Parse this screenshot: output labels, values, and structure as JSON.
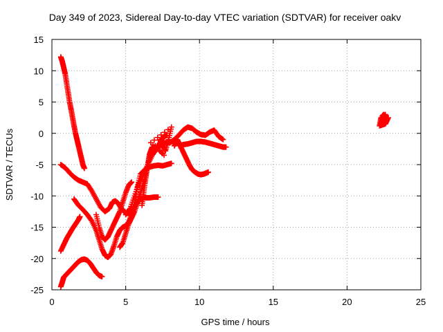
{
  "chart_data": {
    "type": "scatter",
    "title": "Day 349 of 2023, Sidereal Day-to-day VTEC variation (SDTVAR) for receiver oakv",
    "xlabel": "GPS time / hours",
    "ylabel": "SDTVAR / TECUs",
    "xlim": [
      0,
      25
    ],
    "ylim": [
      -25,
      15
    ],
    "xticks": [
      0,
      5,
      10,
      15,
      20,
      25
    ],
    "yticks": [
      -25,
      -20,
      -15,
      -10,
      -5,
      0,
      5,
      10,
      15
    ],
    "grid": true,
    "marker": "+",
    "color": "#ff0000",
    "series": [
      {
        "points": [
          [
            0.6,
            12.2
          ],
          [
            0.7,
            11.5
          ],
          [
            0.8,
            10.5
          ],
          [
            0.9,
            9.5
          ],
          [
            1.0,
            8.0
          ],
          [
            1.1,
            6.5
          ],
          [
            1.2,
            5.0
          ],
          [
            1.3,
            3.8
          ],
          [
            1.4,
            2.5
          ],
          [
            1.5,
            1.2
          ],
          [
            1.6,
            0.0
          ],
          [
            1.7,
            -1.0
          ],
          [
            1.8,
            -2.0
          ],
          [
            1.9,
            -3.0
          ],
          [
            2.0,
            -4.0
          ],
          [
            2.1,
            -5.0
          ],
          [
            2.2,
            -5.6
          ]
        ]
      },
      {
        "points": [
          [
            0.6,
            -5.0
          ],
          [
            0.9,
            -5.5
          ],
          [
            1.2,
            -6.3
          ],
          [
            1.5,
            -7.0
          ],
          [
            1.8,
            -7.5
          ],
          [
            2.1,
            -7.8
          ],
          [
            2.4,
            -8.1
          ],
          [
            2.7,
            -9.2
          ],
          [
            3.0,
            -10.5
          ],
          [
            3.3,
            -11.8
          ],
          [
            3.6,
            -12.5
          ],
          [
            3.9,
            -12.0
          ],
          [
            4.1,
            -11.0
          ],
          [
            4.3,
            -10.8
          ],
          [
            4.5,
            -11.2
          ],
          [
            4.7,
            -12.0
          ],
          [
            4.9,
            -12.5
          ],
          [
            5.1,
            -12.8
          ],
          [
            5.3,
            -12.6
          ],
          [
            5.5,
            -12.0
          ],
          [
            5.8,
            -11.0
          ],
          [
            6.0,
            -10.5
          ],
          [
            6.3,
            -10.3
          ],
          [
            6.6,
            -10.3
          ],
          [
            6.9,
            -10.2
          ],
          [
            7.2,
            -10.2
          ]
        ]
      },
      {
        "points": [
          [
            1.5,
            -10.5
          ],
          [
            1.8,
            -11.5
          ],
          [
            2.1,
            -12.2
          ],
          [
            2.4,
            -13.0
          ],
          [
            2.7,
            -14.0
          ],
          [
            3.0,
            -15.5
          ],
          [
            3.2,
            -17.0
          ],
          [
            3.4,
            -18.5
          ],
          [
            3.6,
            -19.5
          ],
          [
            3.8,
            -19.8
          ],
          [
            4.0,
            -19.3
          ],
          [
            4.2,
            -18.0
          ],
          [
            4.4,
            -16.5
          ],
          [
            4.6,
            -15.5
          ],
          [
            4.8,
            -15.0
          ],
          [
            5.0,
            -14.8
          ],
          [
            5.2,
            -14.2
          ],
          [
            5.4,
            -13.0
          ],
          [
            5.6,
            -11.0
          ],
          [
            5.8,
            -8.5
          ],
          [
            6.0,
            -6.5
          ],
          [
            6.3,
            -5.8
          ],
          [
            6.6,
            -5.4
          ],
          [
            6.9,
            -5.2
          ],
          [
            7.2,
            -5.1
          ],
          [
            7.5,
            -5.2
          ],
          [
            7.8,
            -5.0
          ],
          [
            8.1,
            -4.8
          ]
        ]
      },
      {
        "points": [
          [
            0.6,
            -18.8
          ],
          [
            0.8,
            -17.8
          ],
          [
            1.0,
            -16.8
          ],
          [
            1.2,
            -16.0
          ],
          [
            1.4,
            -15.2
          ],
          [
            1.6,
            -14.5
          ],
          [
            1.8,
            -13.8
          ],
          [
            1.9,
            -13.3
          ]
        ]
      },
      {
        "points": [
          [
            0.6,
            -24.5
          ],
          [
            0.7,
            -23.8
          ],
          [
            0.8,
            -23.0
          ],
          [
            1.0,
            -22.5
          ],
          [
            1.2,
            -22.0
          ],
          [
            1.4,
            -21.5
          ],
          [
            1.6,
            -21.0
          ],
          [
            1.8,
            -20.5
          ],
          [
            2.0,
            -20.2
          ],
          [
            2.2,
            -20.1
          ],
          [
            2.4,
            -20.3
          ],
          [
            2.6,
            -20.8
          ],
          [
            2.8,
            -21.5
          ],
          [
            3.0,
            -22.2
          ],
          [
            3.2,
            -22.7
          ],
          [
            3.4,
            -22.9
          ]
        ]
      },
      {
        "points": [
          [
            3.0,
            -13.0
          ],
          [
            3.2,
            -15.0
          ],
          [
            3.4,
            -16.5
          ],
          [
            3.6,
            -17.0
          ],
          [
            3.8,
            -16.5
          ],
          [
            4.0,
            -15.5
          ],
          [
            4.2,
            -14.5
          ],
          [
            4.4,
            -13.5
          ],
          [
            4.6,
            -12.5
          ],
          [
            4.8,
            -11.0
          ],
          [
            5.0,
            -9.5
          ],
          [
            5.2,
            -8.3
          ],
          [
            5.4,
            -7.8
          ]
        ]
      },
      {
        "points": [
          [
            4.6,
            -18.2
          ],
          [
            4.8,
            -17.5
          ],
          [
            5.0,
            -16.0
          ],
          [
            5.2,
            -14.5
          ],
          [
            5.4,
            -13.5
          ],
          [
            5.6,
            -12.5
          ],
          [
            5.8,
            -11.0
          ],
          [
            6.0,
            -9.5
          ],
          [
            6.2,
            -8.0
          ],
          [
            6.4,
            -6.0
          ],
          [
            6.6,
            -4.0
          ],
          [
            6.8,
            -3.0
          ],
          [
            7.0,
            -2.5
          ],
          [
            7.2,
            -2.0
          ],
          [
            7.4,
            -1.2
          ],
          [
            7.6,
            -0.5
          ],
          [
            7.8,
            -0.3
          ]
        ]
      },
      {
        "points": [
          [
            5.0,
            -13.0
          ],
          [
            5.3,
            -12.0
          ],
          [
            5.6,
            -10.0
          ],
          [
            5.9,
            -8.0
          ],
          [
            6.2,
            -6.5
          ],
          [
            6.5,
            -5.0
          ],
          [
            6.8,
            -3.5
          ],
          [
            7.1,
            -2.5
          ],
          [
            7.4,
            -1.8
          ],
          [
            7.7,
            -1.5
          ],
          [
            8.0,
            -1.5
          ],
          [
            8.3,
            -1.0
          ],
          [
            8.6,
            -0.3
          ],
          [
            8.9,
            0.5
          ],
          [
            9.2,
            1.0
          ],
          [
            9.5,
            0.8
          ],
          [
            9.8,
            0.2
          ],
          [
            10.1,
            -0.2
          ],
          [
            10.4,
            -0.3
          ],
          [
            10.7,
            0.2
          ],
          [
            11.0,
            0.5
          ],
          [
            11.3,
            -0.5
          ],
          [
            11.6,
            -1.0
          ]
        ]
      },
      {
        "points": [
          [
            6.1,
            -11.5
          ],
          [
            6.2,
            -9.8
          ],
          [
            6.3,
            -8.0
          ],
          [
            6.4,
            -6.5
          ],
          [
            6.5,
            -5.0
          ],
          [
            6.6,
            -3.5
          ],
          [
            6.7,
            -2.8
          ],
          [
            6.8,
            -2.2
          ]
        ]
      },
      {
        "points": [
          [
            8.6,
            -2.0
          ],
          [
            8.9,
            -1.8
          ],
          [
            9.2,
            -1.7
          ],
          [
            9.5,
            -1.5
          ],
          [
            9.8,
            -1.3
          ],
          [
            10.1,
            -1.3
          ],
          [
            10.4,
            -1.4
          ],
          [
            10.7,
            -1.6
          ],
          [
            11.0,
            -1.8
          ],
          [
            11.3,
            -2.0
          ],
          [
            11.6,
            -2.2
          ],
          [
            11.8,
            -2.2
          ]
        ]
      },
      {
        "points": [
          [
            8.3,
            -2.0
          ],
          [
            8.5,
            -1.0
          ],
          [
            8.7,
            -2.0
          ],
          [
            8.9,
            -3.0
          ],
          [
            9.1,
            -4.0
          ],
          [
            9.3,
            -5.0
          ],
          [
            9.5,
            -5.8
          ],
          [
            9.7,
            -6.2
          ],
          [
            9.9,
            -6.5
          ],
          [
            10.1,
            -6.6
          ],
          [
            10.3,
            -6.5
          ],
          [
            10.5,
            -6.3
          ],
          [
            10.6,
            -6.2
          ]
        ]
      },
      {
        "points": [
          [
            7.3,
            -1.0
          ],
          [
            7.5,
            -2.0
          ],
          [
            7.7,
            -2.8
          ],
          [
            7.9,
            -1.0
          ],
          [
            8.1,
            1.0
          ],
          [
            6.7,
            -1.5
          ],
          [
            7.6,
            -3.5
          ],
          [
            7.0,
            -2.0
          ]
        ]
      },
      {
        "points": [
          [
            22.3,
            1.5
          ],
          [
            22.4,
            2.8
          ],
          [
            22.5,
            3.0
          ],
          [
            22.6,
            2.6
          ],
          [
            22.7,
            2.2
          ],
          [
            22.5,
            1.8
          ],
          [
            22.3,
            2.5
          ],
          [
            22.2,
            1.2
          ],
          [
            22.6,
            1.5
          ],
          [
            22.8,
            2.5
          ],
          [
            22.4,
            2.0
          ],
          [
            22.6,
            3.0
          ]
        ]
      }
    ]
  }
}
